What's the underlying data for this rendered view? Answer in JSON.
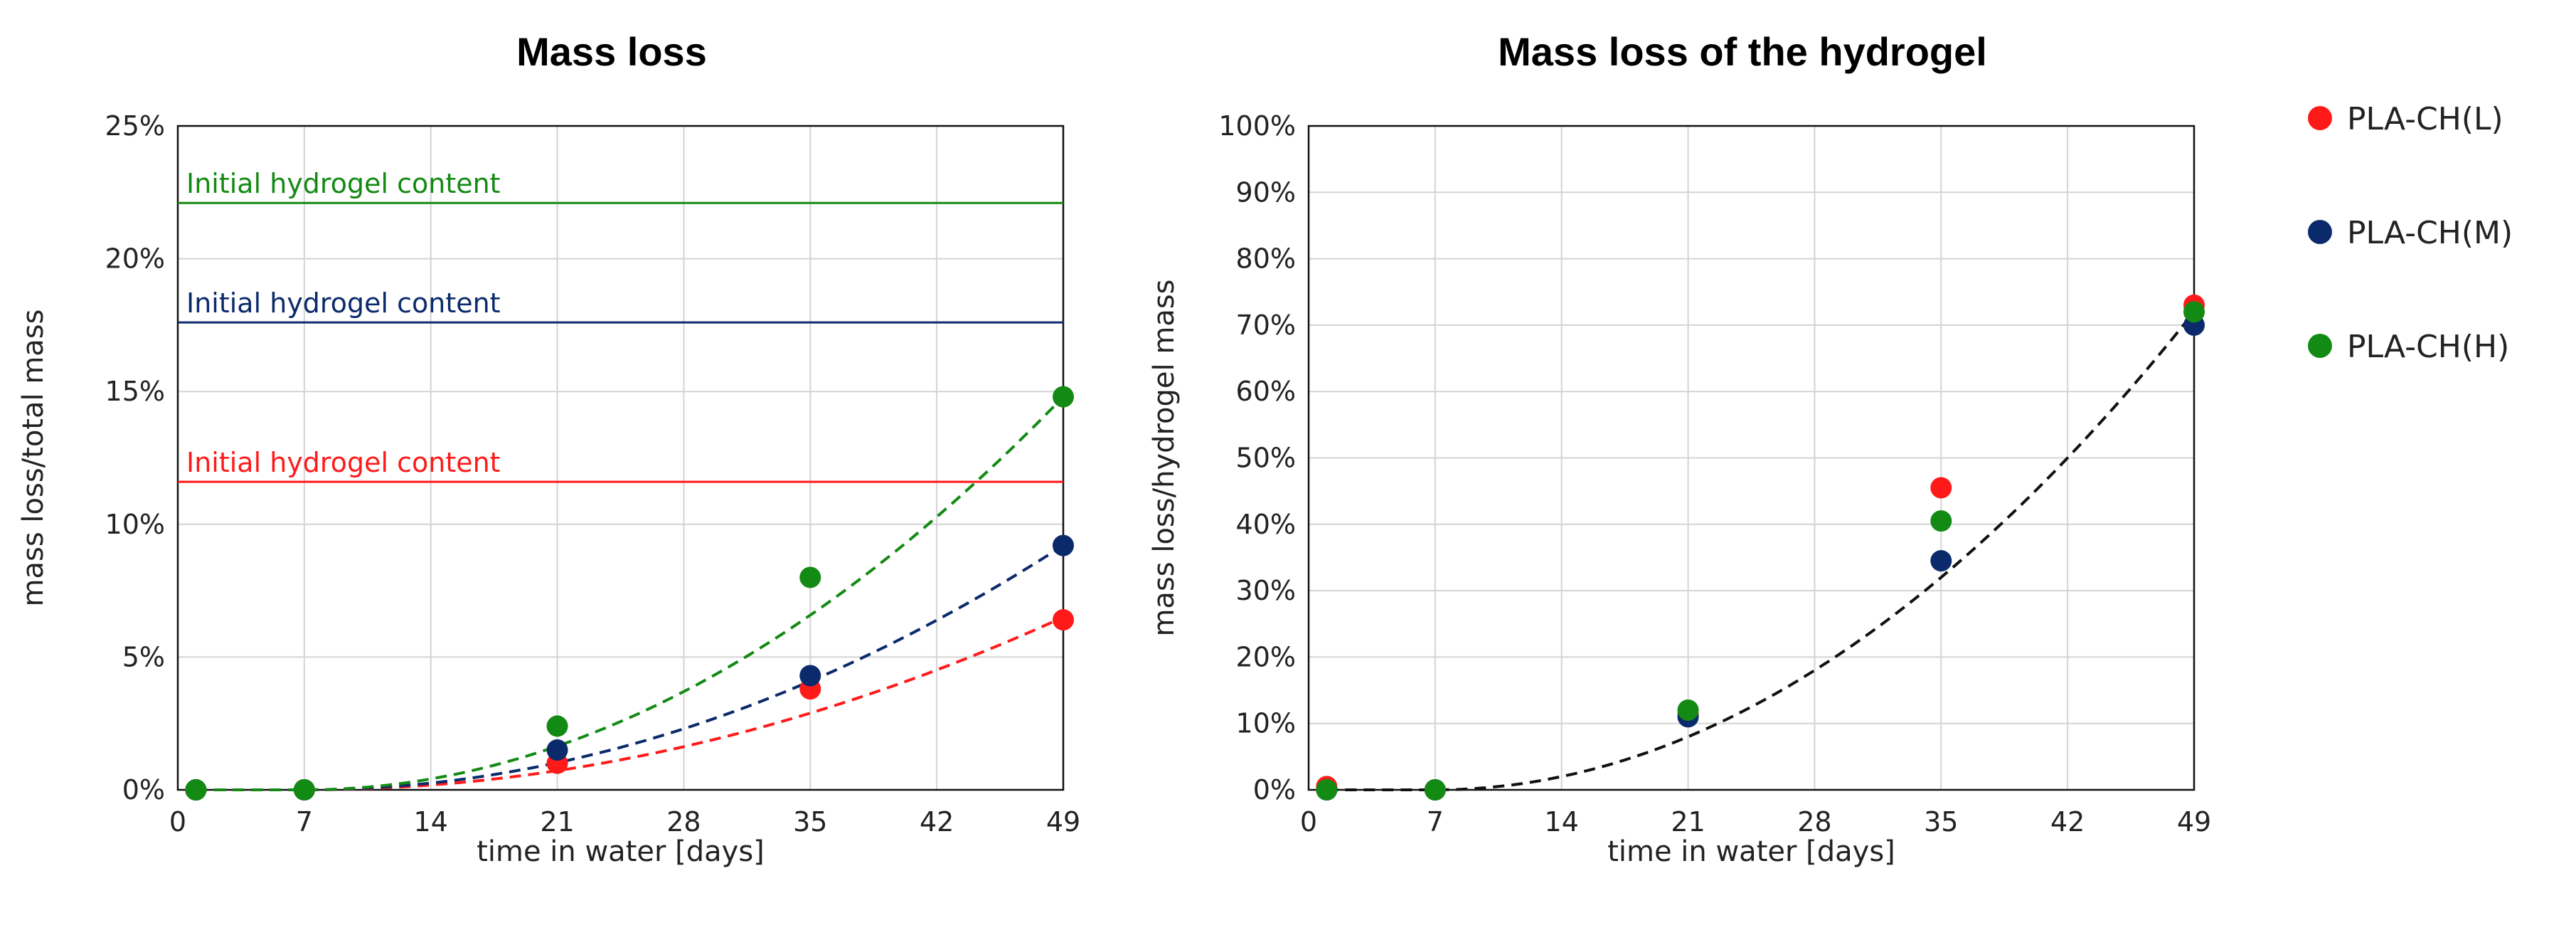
{
  "colors": {
    "PLA-CH(L)": "#ff1a1a",
    "PLA-CH(M)": "#0b2a6b",
    "PLA-CH(H)": "#138a13",
    "black": "#111111"
  },
  "legend": {
    "entries": [
      {
        "label": "PLA-CH(L)"
      },
      {
        "label": "PLA-CH(M)"
      },
      {
        "label": "PLA-CH(H)"
      }
    ]
  },
  "chart_data": [
    {
      "type": "scatter",
      "title": "Mass loss",
      "xlabel": "time in water [days]",
      "ylabel": "mass loss/total mass",
      "xlim": [
        0,
        49
      ],
      "ylim": [
        0,
        25
      ],
      "xticks": [
        0,
        7,
        14,
        21,
        28,
        35,
        42,
        49
      ],
      "xtick_labels": [
        "0",
        "7",
        "14",
        "21",
        "28",
        "35",
        "42",
        "49"
      ],
      "yticks": [
        0,
        5,
        10,
        15,
        20,
        25
      ],
      "ytick_labels": [
        "0%",
        "5%",
        "10%",
        "15%",
        "20%",
        "25%"
      ],
      "grid": true,
      "reference_lines": [
        {
          "label": "Initial hydrogel content",
          "y": 22.1,
          "series": "PLA-CH(H)"
        },
        {
          "label": "Initial hydrogel content",
          "y": 17.6,
          "series": "PLA-CH(M)"
        },
        {
          "label": "Initial hydrogel content",
          "y": 11.6,
          "series": "PLA-CH(L)"
        }
      ],
      "series": [
        {
          "name": "PLA-CH(L)",
          "x": [
            1,
            7,
            21,
            35,
            49
          ],
          "y": [
            0.0,
            0.0,
            1.0,
            3.8,
            6.4
          ],
          "trend": {
            "from": 7,
            "to": 49,
            "y_at_to": 6.5,
            "power": 2
          }
        },
        {
          "name": "PLA-CH(M)",
          "x": [
            1,
            7,
            21,
            35,
            49
          ],
          "y": [
            0.0,
            0.0,
            1.5,
            4.3,
            9.2
          ],
          "trend": {
            "from": 7,
            "to": 49,
            "y_at_to": 9.2,
            "power": 2
          }
        },
        {
          "name": "PLA-CH(H)",
          "x": [
            1,
            7,
            21,
            35,
            49
          ],
          "y": [
            0.0,
            0.0,
            2.4,
            8.0,
            14.8
          ],
          "trend": {
            "from": 7,
            "to": 49,
            "y_at_to": 14.8,
            "power": 2
          }
        }
      ]
    },
    {
      "type": "scatter",
      "title": "Mass loss of the hydrogel",
      "xlabel": "time in water [days]",
      "ylabel": "mass loss/hydrogel mass",
      "xlim": [
        0,
        49
      ],
      "ylim": [
        0,
        100
      ],
      "xticks": [
        0,
        7,
        14,
        21,
        28,
        35,
        42,
        49
      ],
      "xtick_labels": [
        "0",
        "7",
        "14",
        "21",
        "28",
        "35",
        "42",
        "49"
      ],
      "yticks": [
        0,
        10,
        20,
        30,
        40,
        50,
        60,
        70,
        80,
        90,
        100
      ],
      "ytick_labels": [
        "0%",
        "10%",
        "20%",
        "30%",
        "40%",
        "50%",
        "60%",
        "70%",
        "80%",
        "90%",
        "100%"
      ],
      "grid": true,
      "reference_lines": [],
      "series": [
        {
          "name": "PLA-CH(L)",
          "x": [
            1,
            7,
            21,
            35,
            49
          ],
          "y": [
            0.5,
            0.0,
            11.5,
            45.5,
            73.0
          ]
        },
        {
          "name": "PLA-CH(M)",
          "x": [
            1,
            7,
            21,
            35,
            49
          ],
          "y": [
            0.0,
            0.0,
            11.0,
            34.5,
            70.0
          ]
        },
        {
          "name": "PLA-CH(H)",
          "x": [
            1,
            7,
            21,
            35,
            49
          ],
          "y": [
            0.0,
            0.0,
            12.0,
            40.5,
            72.0
          ]
        }
      ],
      "trend": {
        "from": 7,
        "to": 49,
        "y_at_to": 72,
        "power": 2,
        "color": "black"
      }
    }
  ]
}
